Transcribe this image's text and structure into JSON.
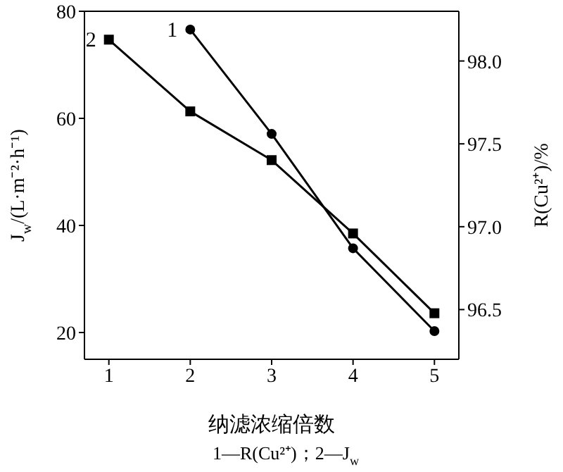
{
  "chart_data": {
    "type": "line",
    "xlabel": "纳滤浓缩倍数",
    "ylabel": "J$_{w}$/(L·m⁻²·h⁻¹)",
    "y2label": "R(Cu²⁺)/%",
    "x": [
      1,
      2,
      3,
      4,
      5
    ],
    "xlim": [
      0.7,
      5.3
    ],
    "xticks": [
      1,
      2,
      3,
      4,
      5
    ],
    "ylim": [
      15,
      80
    ],
    "yticks": [
      20,
      40,
      60,
      80
    ],
    "y2lim": [
      96.2,
      98.3
    ],
    "y2ticks": [
      {
        "value": 96.5,
        "label": "96.5"
      },
      {
        "value": 97,
        "label": "97.0"
      },
      {
        "value": 97.5,
        "label": "97.5"
      },
      {
        "value": 98,
        "label": "98.0"
      }
    ],
    "series": [
      {
        "name": "1",
        "color": "#000000",
        "axis": "y2",
        "marker": "circle",
        "values": [
          null,
          98.19,
          97.56,
          96.87,
          96.37
        ]
      },
      {
        "name": "2",
        "color": "#000000",
        "marker": "square",
        "values": [
          74.7,
          61.3,
          52.2,
          38.5,
          23.6
        ]
      }
    ],
    "annotations": [
      "1—R(Cu²⁺)；2—J$_{w}$"
    ]
  }
}
